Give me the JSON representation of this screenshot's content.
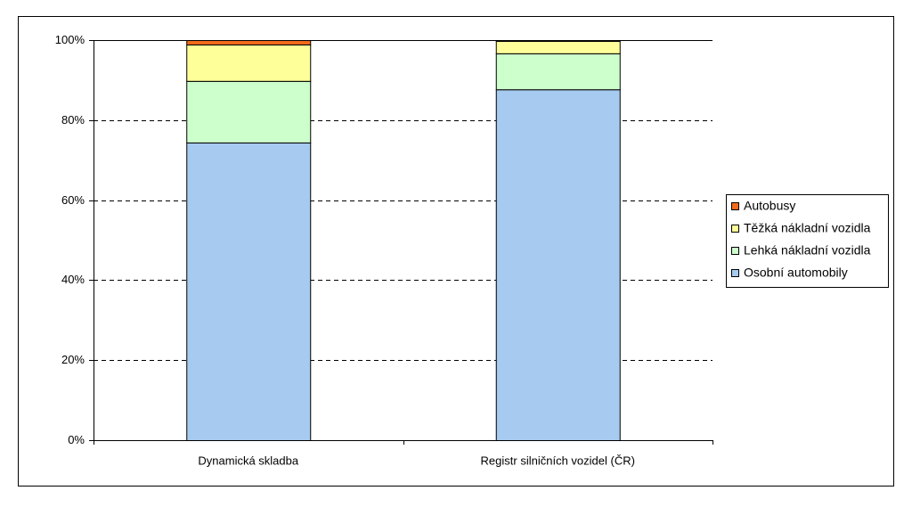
{
  "chart_data": {
    "type": "stacked_bar",
    "categories": [
      "Dynamická skladba",
      "Registr silničních vozidel (ČR)"
    ],
    "series": [
      {
        "name": "Osobní automobily",
        "color": "#a6caf0",
        "values": [
          74.4,
          87.7
        ]
      },
      {
        "name": "Lehká nákladní vozidla",
        "color": "#ccffcc",
        "values": [
          15.4,
          9.0
        ]
      },
      {
        "name": "Těžká nákladní vozidla",
        "color": "#ffff99",
        "values": [
          9.1,
          3.1
        ]
      },
      {
        "name": "Autobusy",
        "color": "#f26a1b",
        "values": [
          1.1,
          0.2
        ]
      }
    ],
    "ylim": [
      0,
      100
    ],
    "yticks": [
      {
        "value": 0,
        "label": "0%"
      },
      {
        "value": 20,
        "label": "20%"
      },
      {
        "value": 40,
        "label": "40%"
      },
      {
        "value": 60,
        "label": "60%"
      },
      {
        "value": 80,
        "label": "80%"
      },
      {
        "value": 100,
        "label": "100%"
      }
    ],
    "grid": true,
    "legend": "right"
  }
}
